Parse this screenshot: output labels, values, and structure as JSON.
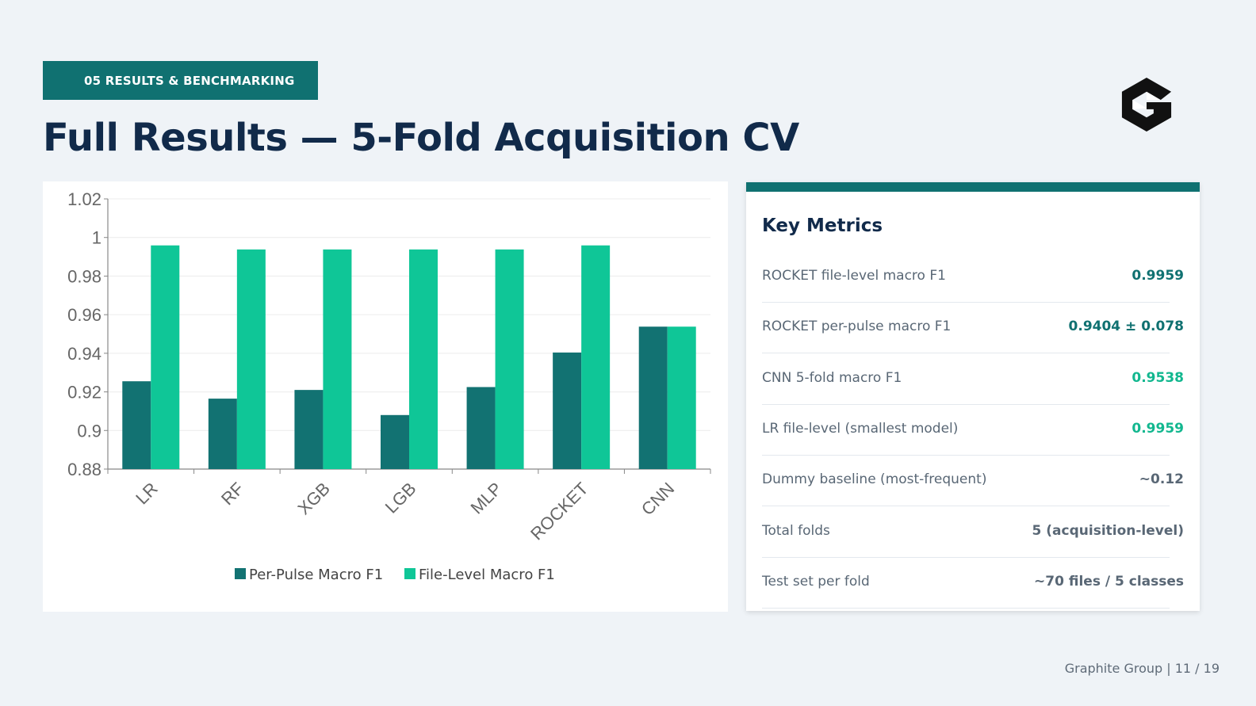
{
  "header": {
    "section_tag": "05  RESULTS & BENCHMARKING",
    "title": "Full Results — 5-Fold Acquisition CV"
  },
  "logo": {
    "icon": "graphite-g-logo-icon",
    "color": "#111111"
  },
  "chart_data": {
    "type": "bar",
    "categories": [
      "LR",
      "RF",
      "XGB",
      "LGB",
      "MLP",
      "ROCKET",
      "CNN"
    ],
    "series": [
      {
        "name": "Per-Pulse Macro F1",
        "color": "#127272",
        "values": [
          0.9255,
          0.9165,
          0.921,
          0.908,
          0.9225,
          0.9404,
          0.9538
        ]
      },
      {
        "name": "File-Level Macro F1",
        "color": "#0fc697",
        "values": [
          0.9959,
          0.9938,
          0.9938,
          0.9938,
          0.9938,
          0.9959,
          0.9538
        ]
      }
    ],
    "ylim": [
      0.88,
      1.02
    ],
    "yticks": [
      "1.02",
      "1",
      "0.98",
      "0.96",
      "0.94",
      "0.92",
      "0.9",
      "0.88"
    ],
    "ytick_values": [
      1.02,
      1,
      0.98,
      0.96,
      0.94,
      0.92,
      0.9,
      0.88
    ],
    "grid": true,
    "legend": "bottom-center",
    "xlabel": "",
    "ylabel": ""
  },
  "panel": {
    "title": "Key Metrics",
    "metrics": [
      {
        "label": "ROCKET file-level macro F1",
        "value": "0.9959",
        "color": "#107171"
      },
      {
        "label": "ROCKET per-pulse macro F1",
        "value": "0.9404 ± 0.078",
        "color": "#107171"
      },
      {
        "label": "CNN 5-fold macro F1",
        "value": "0.9538",
        "color": "#12b78f"
      },
      {
        "label": "LR file-level (smallest model)",
        "value": "0.9959",
        "color": "#12b78f"
      },
      {
        "label": "Dummy baseline (most-frequent)",
        "value": "~0.12",
        "color": "#596775"
      },
      {
        "label": "Total folds",
        "value": "5 (acquisition-level)",
        "color": "#596775"
      },
      {
        "label": "Test set per fold",
        "value": "~70 files / 5 classes",
        "color": "#596775"
      }
    ]
  },
  "footer": {
    "text": "Graphite Group | 11 / 19"
  }
}
